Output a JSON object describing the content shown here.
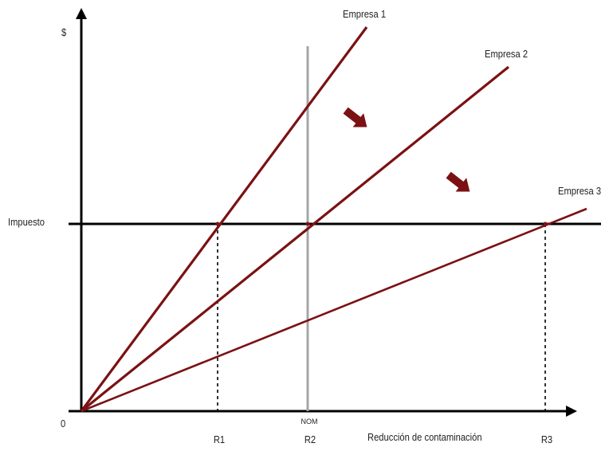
{
  "diagram": {
    "axis_y_label": "$",
    "origin_label": "0",
    "axis_x_label": "Reducción de contaminación",
    "tax_label": "Impuesto",
    "standard_label": "NOM",
    "firms": [
      {
        "label": "Empresa 1",
        "color": "#7b1113"
      },
      {
        "label": "Empresa 2",
        "color": "#7b1113"
      },
      {
        "label": "Empresa 3",
        "color": "#7b1113"
      }
    ],
    "reductions": [
      "R1",
      "R2",
      "R3"
    ],
    "colors": {
      "axis": "#000000",
      "standard_line": "#a6a6a6",
      "curve": "#7b1113",
      "arrow": "#7b1113"
    }
  }
}
